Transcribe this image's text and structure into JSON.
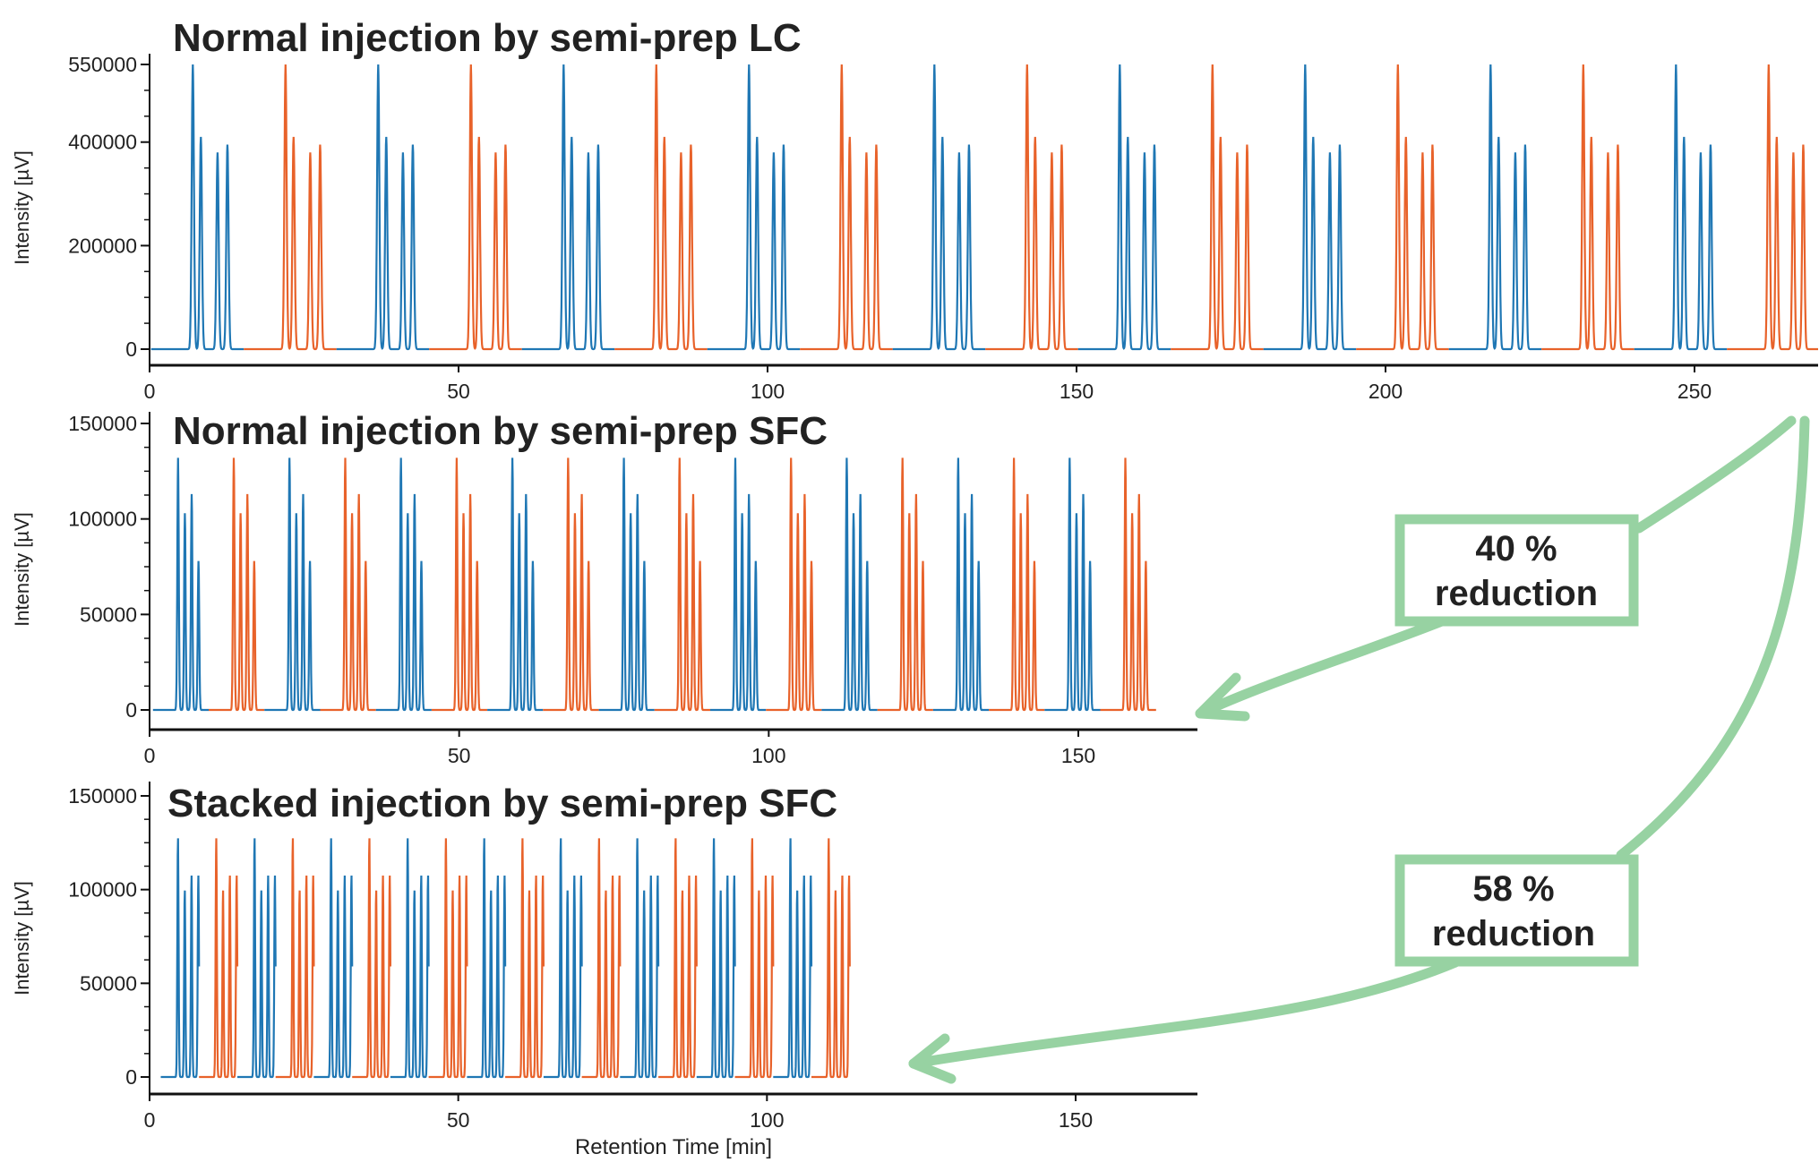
{
  "colors": {
    "series_blue": "#1f77b4",
    "series_orange": "#e8622a",
    "callout_green": "#97d2a2",
    "axis": "#111111",
    "text": "#222222"
  },
  "chart_data": [
    {
      "type": "line",
      "title": "Normal injection by semi-prep LC",
      "ylabel": "Intensity [µV]",
      "xlabel": "",
      "xlim": [
        0,
        270
      ],
      "ylim": [
        -30000,
        570000
      ],
      "xticks": [
        0,
        50,
        100,
        150,
        200,
        250
      ],
      "yticks": [
        0,
        200000,
        400000,
        550000
      ],
      "grid": false,
      "legend": "none",
      "total_time_min": 270,
      "injections": {
        "count": 18,
        "first_start_min": 7.0,
        "interval_min": 15.0,
        "colors_alternate": [
          "blue",
          "orange"
        ],
        "peaks_per_injection": [
          {
            "offset_min": 0.0,
            "height": 550000
          },
          {
            "offset_min": 1.3,
            "height": 410000
          },
          {
            "offset_min": 4.0,
            "height": 380000
          },
          {
            "offset_min": 5.6,
            "height": 395000
          }
        ],
        "peak_width_min": 0.45
      }
    },
    {
      "type": "line",
      "title": "Normal injection by semi-prep SFC",
      "ylabel": "Intensity [µV]",
      "xlabel": "",
      "xlim": [
        0,
        170
      ],
      "ylim": [
        -10000,
        155000
      ],
      "xticks": [
        0,
        50,
        100,
        150
      ],
      "yticks": [
        0,
        50000,
        100000,
        150000
      ],
      "grid": false,
      "legend": "none",
      "total_time_min": 163,
      "injections": {
        "count": 18,
        "first_start_min": 4.6,
        "interval_min": 9.0,
        "colors_alternate": [
          "blue",
          "orange"
        ],
        "peaks_per_injection": [
          {
            "offset_min": 0.0,
            "height": 132000
          },
          {
            "offset_min": 1.1,
            "height": 103000
          },
          {
            "offset_min": 2.2,
            "height": 113000
          },
          {
            "offset_min": 3.3,
            "height": 78000
          }
        ],
        "peak_width_min": 0.3
      }
    },
    {
      "type": "line",
      "title": "Stacked injection by semi-prep SFC",
      "ylabel": "Intensity [µV]",
      "xlabel": "Retention Time [min]",
      "xlim": [
        0,
        170
      ],
      "ylim": [
        -10000,
        160000
      ],
      "xticks": [
        0,
        50,
        100,
        150
      ],
      "yticks": [
        0,
        50000,
        100000,
        150000
      ],
      "grid": false,
      "legend": "none",
      "total_time_min": 115,
      "injections": {
        "count": 18,
        "first_start_min": 4.6,
        "interval_min": 6.2,
        "colors_alternate": [
          "blue",
          "orange"
        ],
        "peaks_per_injection": [
          {
            "offset_min": 0.0,
            "height": 128000
          },
          {
            "offset_min": 1.1,
            "height": 100000
          },
          {
            "offset_min": 2.2,
            "height": 108000
          },
          {
            "offset_min": 3.3,
            "height": 108000
          }
        ],
        "peak_width_min": 0.25
      }
    }
  ],
  "callouts": [
    {
      "line1": "40 %",
      "line2": "reduction"
    },
    {
      "line1": "58 %",
      "line2": "reduction"
    }
  ]
}
